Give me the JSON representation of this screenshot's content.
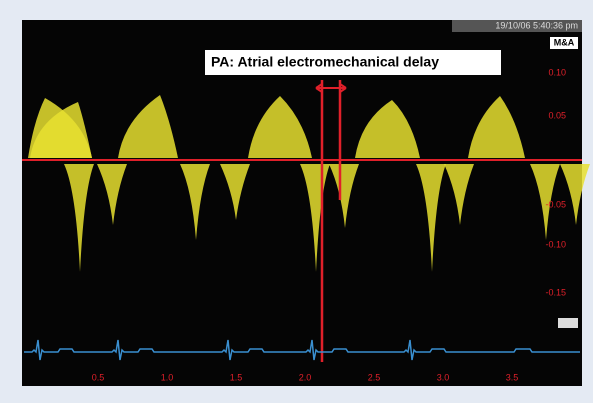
{
  "header": {
    "timestamp": "19/10/06 5:40:36 pm",
    "badge": "M&A"
  },
  "annotation": "PA: Atrial electromechanical delay",
  "velocity_labels": [
    "0.10",
    "0.05",
    "-0.05",
    "-0.10",
    "-0.15"
  ],
  "time_labels": [
    "0.5",
    "1.0",
    "1.5",
    "2.0",
    "2.5",
    "3.0",
    "3.5"
  ]
}
